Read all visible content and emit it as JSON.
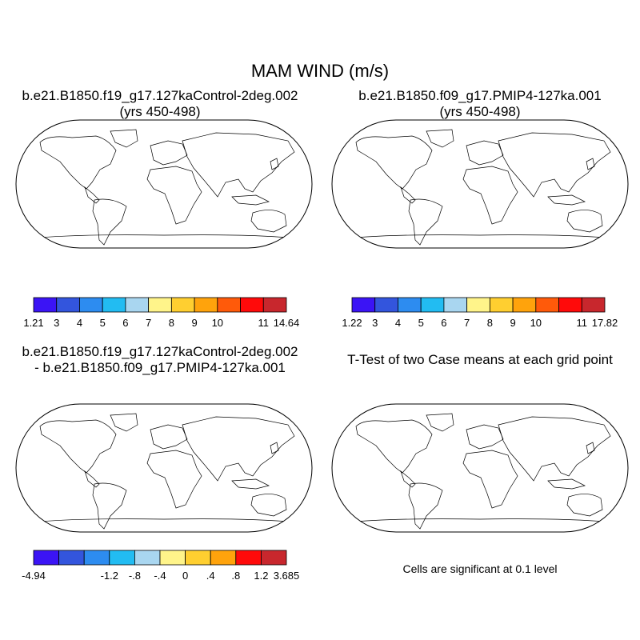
{
  "title": "MAM WIND (m/s)",
  "panels": [
    {
      "id": "control",
      "title_line1": "b.e21.B1850.f19_g17.127kaControl-2deg.002",
      "title_line2": "(yrs 450-498)",
      "field": "wind-speed",
      "colorbar": {
        "colors": [
          "#3b14f5",
          "#3355dd",
          "#2d8cf0",
          "#22bcf2",
          "#a9d6f0",
          "#fff48a",
          "#ffcf30",
          "#ffa30c",
          "#ff5a0a",
          "#ff0a0a",
          "#c8272d"
        ],
        "labels": [
          "1.21",
          "3",
          "4",
          "5",
          "6",
          "7",
          "8",
          "9",
          "10",
          "11",
          "14.64"
        ]
      }
    },
    {
      "id": "pmip4",
      "title_line1": "b.e21.B1850.f09_g17.PMIP4-127ka.001",
      "title_line2": "(yrs 450-498)",
      "field": "wind-speed",
      "colorbar": {
        "colors": [
          "#3b14f5",
          "#3355dd",
          "#2d8cf0",
          "#22bcf2",
          "#a9d6f0",
          "#fff48a",
          "#ffcf30",
          "#ffa30c",
          "#ff5a0a",
          "#ff0a0a",
          "#c8272d"
        ],
        "labels": [
          "1.22",
          "3",
          "4",
          "5",
          "6",
          "7",
          "8",
          "9",
          "10",
          "11",
          "17.82"
        ]
      }
    },
    {
      "id": "difference",
      "title_line1": "b.e21.B1850.f19_g17.127kaControl-2deg.002",
      "title_line2": "- b.e21.B1850.f09_g17.PMIP4-127ka.001",
      "field": "difference",
      "colorbar": {
        "colors": [
          "#3b14f5",
          "#3355dd",
          "#2d8cf0",
          "#22bcf2",
          "#a9d6f0",
          "#fff48a",
          "#ffcf30",
          "#ffa30c",
          "#ff0a0a",
          "#c8272d"
        ],
        "labels": [
          "-4.94",
          "-1.2",
          "-.8",
          "-.4",
          "0",
          ".4",
          ".8",
          "1.2",
          "3.685"
        ]
      }
    },
    {
      "id": "ttest",
      "title_line1": "T-Test of two Case means at each grid point",
      "field": "significance",
      "significant_color": "#ff0000",
      "note": "Cells are significant at 0.1 level"
    }
  ]
}
